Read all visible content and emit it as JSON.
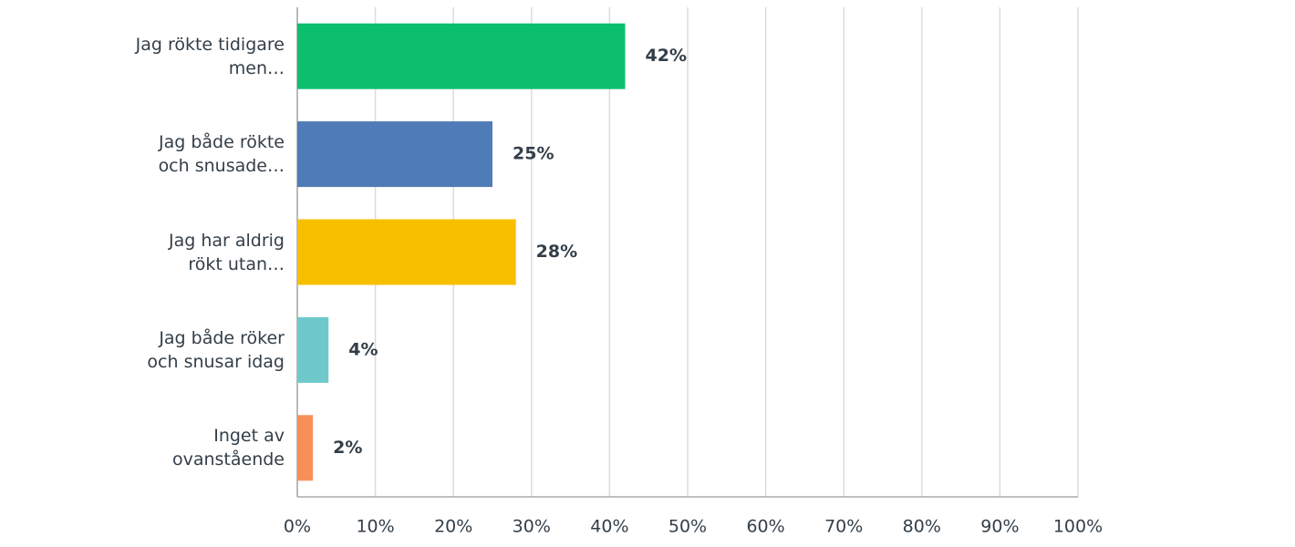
{
  "chart_data": {
    "type": "hbar",
    "categories": [
      "Jag rökte tidigare men…",
      "Jag både rökte och snusade…",
      "Jag har aldrig rökt utan…",
      "Jag både röker och snusar idag",
      "Inget av ovanstående"
    ],
    "values": [
      42,
      25,
      28,
      4,
      2
    ],
    "value_labels": [
      "42%",
      "25%",
      "28%",
      "4%",
      "2%"
    ],
    "colors": [
      "#0bbf6e",
      "#4f7bb8",
      "#f7bf00",
      "#6fc9cb",
      "#f79058"
    ],
    "xlim": [
      0,
      100
    ],
    "xticks": [
      {
        "value": 0,
        "label": "0%"
      },
      {
        "value": 10,
        "label": "10%"
      },
      {
        "value": 20,
        "label": "20%"
      },
      {
        "value": 30,
        "label": "30%"
      },
      {
        "value": 40,
        "label": "40%"
      },
      {
        "value": 50,
        "label": "50%"
      },
      {
        "value": 60,
        "label": "60%"
      },
      {
        "value": 70,
        "label": "70%"
      },
      {
        "value": 80,
        "label": "80%"
      },
      {
        "value": 90,
        "label": "90%"
      },
      {
        "value": 100,
        "label": "100%"
      }
    ],
    "grid": true
  }
}
